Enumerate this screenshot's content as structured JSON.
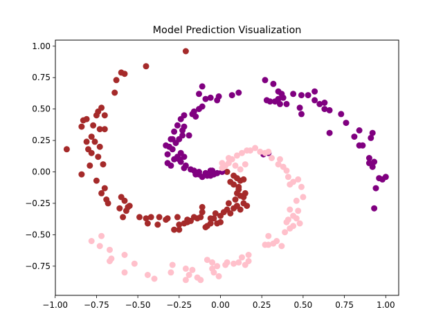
{
  "chart_data": {
    "type": "scatter",
    "title": "Model Prediction Visualization",
    "xlabel": "",
    "ylabel": "",
    "xlim": [
      -1.0,
      1.0
    ],
    "ylim": [
      -0.95,
      1.0
    ],
    "xticks": [
      -1.0,
      -0.75,
      -0.5,
      -0.25,
      0.0,
      0.25,
      0.5,
      0.75,
      1.0
    ],
    "xtick_labels": [
      "−1.00",
      "−0.75",
      "−0.50",
      "−0.25",
      "0.00",
      "0.25",
      "0.50",
      "0.75",
      "1.00"
    ],
    "yticks": [
      -0.75,
      -0.5,
      -0.25,
      0.0,
      0.25,
      0.5,
      0.75,
      1.0
    ],
    "ytick_labels": [
      "−0.75",
      "−0.50",
      "−0.25",
      "0.00",
      "0.25",
      "0.50",
      "0.75",
      "1.00"
    ],
    "grid": false,
    "series": [
      {
        "color": "#a52a2a",
        "points": [
          [
            -0.21,
            0.96
          ],
          [
            -0.45,
            0.84
          ],
          [
            -0.6,
            0.79
          ],
          [
            -0.58,
            0.78
          ],
          [
            -0.63,
            0.73
          ],
          [
            -0.64,
            0.63
          ],
          [
            -0.72,
            0.51
          ],
          [
            -0.74,
            0.48
          ],
          [
            -0.75,
            0.45
          ],
          [
            -0.7,
            0.45
          ],
          [
            -0.81,
            0.42
          ],
          [
            -0.83,
            0.41
          ],
          [
            -0.77,
            0.37
          ],
          [
            -0.73,
            0.34
          ],
          [
            -0.7,
            0.34
          ],
          [
            -0.84,
            0.36
          ],
          [
            -0.78,
            0.28
          ],
          [
            -0.81,
            0.24
          ],
          [
            -0.76,
            0.24
          ],
          [
            -0.73,
            0.2
          ],
          [
            -0.93,
            0.18
          ],
          [
            -0.8,
            0.18
          ],
          [
            -0.78,
            0.15
          ],
          [
            -0.74,
            0.12
          ],
          [
            -0.79,
            0.05
          ],
          [
            -0.71,
            0.06
          ],
          [
            -0.84,
            -0.02
          ],
          [
            -0.75,
            -0.07
          ],
          [
            -0.7,
            -0.13
          ],
          [
            -0.72,
            -0.17
          ],
          [
            -0.69,
            -0.22
          ],
          [
            -0.68,
            -0.25
          ],
          [
            -0.6,
            -0.2
          ],
          [
            -0.58,
            -0.23
          ],
          [
            -0.61,
            -0.29
          ],
          [
            -0.57,
            -0.31
          ],
          [
            -0.55,
            -0.27
          ],
          [
            -0.59,
            -0.36
          ],
          [
            -0.56,
            -0.28
          ],
          [
            -0.49,
            -0.36
          ],
          [
            -0.45,
            -0.37
          ],
          [
            -0.42,
            -0.36
          ],
          [
            -0.44,
            -0.41
          ],
          [
            -0.37,
            -0.36
          ],
          [
            -0.38,
            -0.42
          ],
          [
            -0.33,
            -0.38
          ],
          [
            -0.32,
            -0.37
          ],
          [
            -0.26,
            -0.36
          ],
          [
            -0.28,
            -0.46
          ],
          [
            -0.25,
            -0.42
          ],
          [
            -0.25,
            -0.46
          ],
          [
            -0.22,
            -0.41
          ],
          [
            -0.2,
            -0.4
          ],
          [
            -0.2,
            -0.38
          ],
          [
            -0.18,
            -0.39
          ],
          [
            -0.16,
            -0.36
          ],
          [
            -0.14,
            -0.37
          ],
          [
            -0.12,
            -0.36
          ],
          [
            -0.11,
            -0.32
          ],
          [
            -0.11,
            -0.28
          ],
          [
            -0.09,
            -0.44
          ],
          [
            -0.08,
            -0.43
          ],
          [
            -0.06,
            -0.41
          ],
          [
            -0.06,
            -0.37
          ],
          [
            -0.04,
            -0.37
          ],
          [
            -0.03,
            -0.33
          ],
          [
            -0.02,
            -0.41
          ],
          [
            0.0,
            -0.35
          ],
          [
            0.0,
            -0.4
          ],
          [
            0.02,
            -0.32
          ],
          [
            0.04,
            -0.3
          ],
          [
            0.05,
            -0.25
          ],
          [
            0.06,
            -0.33
          ],
          [
            0.08,
            -0.29
          ],
          [
            0.09,
            -0.22
          ],
          [
            0.1,
            -0.17
          ],
          [
            0.11,
            -0.14
          ],
          [
            0.11,
            -0.12
          ],
          [
            0.12,
            -0.19
          ],
          [
            0.14,
            -0.2
          ],
          [
            0.14,
            -0.25
          ],
          [
            0.15,
            -0.17
          ],
          [
            0.16,
            -0.27
          ],
          [
            0.1,
            -0.27
          ],
          [
            0.12,
            -0.3
          ],
          [
            0.08,
            -0.1
          ],
          [
            0.06,
            -0.08
          ],
          [
            0.1,
            -0.05
          ],
          [
            0.08,
            -0.03
          ],
          [
            0.04,
            0.0
          ],
          [
            0.12,
            -0.07
          ],
          [
            0.14,
            -0.06
          ]
        ]
      },
      {
        "color": "#800080",
        "points": [
          [
            0.27,
            0.73
          ],
          [
            0.32,
            0.7
          ],
          [
            0.35,
            0.64
          ],
          [
            0.37,
            0.62
          ],
          [
            0.38,
            0.59
          ],
          [
            0.35,
            0.58
          ],
          [
            0.28,
            0.57
          ],
          [
            0.3,
            0.56
          ],
          [
            0.33,
            0.56
          ],
          [
            0.36,
            0.54
          ],
          [
            0.4,
            0.54
          ],
          [
            0.44,
            0.62
          ],
          [
            0.49,
            0.61
          ],
          [
            0.53,
            0.61
          ],
          [
            0.57,
            0.64
          ],
          [
            0.57,
            0.57
          ],
          [
            0.6,
            0.54
          ],
          [
            0.63,
            0.55
          ],
          [
            0.63,
            0.5
          ],
          [
            0.66,
            0.49
          ],
          [
            0.48,
            0.51
          ],
          [
            0.49,
            0.46
          ],
          [
            0.73,
            0.46
          ],
          [
            0.76,
            0.39
          ],
          [
            0.66,
            0.31
          ],
          [
            0.84,
            0.33
          ],
          [
            0.92,
            0.31
          ],
          [
            0.81,
            0.28
          ],
          [
            0.84,
            0.21
          ],
          [
            0.86,
            0.21
          ],
          [
            0.91,
            0.27
          ],
          [
            0.9,
            0.11
          ],
          [
            0.93,
            0.08
          ],
          [
            0.9,
            0.07
          ],
          [
            0.92,
            0.04
          ],
          [
            0.96,
            -0.05
          ],
          [
            0.98,
            -0.06
          ],
          [
            1.0,
            -0.04
          ],
          [
            0.94,
            -0.13
          ],
          [
            0.93,
            -0.29
          ],
          [
            0.26,
            0.14
          ],
          [
            0.29,
            0.15
          ],
          [
            -0.11,
            0.68
          ],
          [
            -0.13,
            0.62
          ],
          [
            0.07,
            0.61
          ],
          [
            0.11,
            0.63
          ],
          [
            -0.01,
            0.6
          ],
          [
            -0.02,
            0.57
          ],
          [
            -0.06,
            0.59
          ],
          [
            -0.09,
            0.58
          ],
          [
            -0.11,
            0.52
          ],
          [
            -0.13,
            0.5
          ],
          [
            -0.16,
            0.48
          ],
          [
            -0.17,
            0.46
          ],
          [
            -0.15,
            0.44
          ],
          [
            -0.22,
            0.45
          ],
          [
            -0.24,
            0.42
          ],
          [
            -0.26,
            0.37
          ],
          [
            -0.22,
            0.36
          ],
          [
            -0.28,
            0.32
          ],
          [
            -0.23,
            0.33
          ],
          [
            -0.19,
            0.29
          ],
          [
            -0.23,
            0.29
          ],
          [
            -0.29,
            0.26
          ],
          [
            -0.25,
            0.26
          ],
          [
            -0.3,
            0.26
          ],
          [
            -0.27,
            0.23
          ],
          [
            -0.33,
            0.21
          ],
          [
            -0.31,
            0.2
          ],
          [
            -0.29,
            0.18
          ],
          [
            -0.32,
            0.14
          ],
          [
            -0.24,
            0.15
          ],
          [
            -0.26,
            0.12
          ],
          [
            -0.22,
            0.12
          ],
          [
            -0.25,
            0.1
          ],
          [
            -0.28,
            0.1
          ],
          [
            -0.3,
            0.05
          ],
          [
            -0.32,
            0.07
          ],
          [
            -0.24,
            0.08
          ],
          [
            -0.21,
            0.05
          ],
          [
            -0.22,
            0.03
          ],
          [
            -0.18,
            0.02
          ],
          [
            -0.16,
            0.01
          ],
          [
            -0.15,
            -0.02
          ],
          [
            -0.13,
            -0.02
          ],
          [
            -0.11,
            -0.04
          ],
          [
            -0.09,
            -0.01
          ],
          [
            -0.06,
            -0.03
          ],
          [
            -0.04,
            -0.02
          ],
          [
            -0.02,
            -0.01
          ],
          [
            0.01,
            0.0
          ],
          [
            -0.08,
            -0.03
          ],
          [
            -0.13,
            0.0
          ],
          [
            -0.06,
            0.01
          ],
          [
            -0.05,
            0.01
          ]
        ]
      },
      {
        "color": "#ffc0cb",
        "points": [
          [
            -0.78,
            -0.55
          ],
          [
            -0.72,
            -0.51
          ],
          [
            -0.73,
            -0.59
          ],
          [
            -0.67,
            -0.62
          ],
          [
            -0.66,
            -0.69
          ],
          [
            -0.67,
            -0.71
          ],
          [
            -0.58,
            -0.66
          ],
          [
            -0.58,
            -0.8
          ],
          [
            -0.52,
            -0.73
          ],
          [
            -0.44,
            -0.82
          ],
          [
            -0.4,
            -0.85
          ],
          [
            -0.3,
            -0.8
          ],
          [
            -0.29,
            -0.74
          ],
          [
            -0.21,
            -0.77
          ],
          [
            -0.19,
            -0.82
          ],
          [
            -0.21,
            -0.86
          ],
          [
            -0.17,
            -0.78
          ],
          [
            -0.14,
            -0.84
          ],
          [
            -0.12,
            -0.86
          ],
          [
            -0.08,
            -0.7
          ],
          [
            -0.05,
            -0.72
          ],
          [
            -0.05,
            -0.77
          ],
          [
            -0.04,
            -0.8
          ],
          [
            -0.02,
            -0.75
          ],
          [
            -0.01,
            -0.83
          ],
          [
            0.03,
            -0.74
          ],
          [
            0.04,
            -0.72
          ],
          [
            0.08,
            -0.73
          ],
          [
            0.11,
            -0.72
          ],
          [
            0.13,
            -0.68
          ],
          [
            0.15,
            -0.74
          ],
          [
            0.17,
            -0.71
          ],
          [
            0.17,
            -0.66
          ],
          [
            0.27,
            -0.58
          ],
          [
            0.29,
            -0.58
          ],
          [
            0.34,
            -0.55
          ],
          [
            0.29,
            -0.51
          ],
          [
            0.32,
            -0.57
          ],
          [
            0.37,
            -0.59
          ],
          [
            0.39,
            -0.48
          ],
          [
            0.4,
            -0.4
          ],
          [
            0.42,
            -0.45
          ],
          [
            0.41,
            -0.38
          ],
          [
            0.42,
            -0.3
          ],
          [
            0.44,
            -0.35
          ],
          [
            0.46,
            -0.37
          ],
          [
            0.44,
            -0.43
          ],
          [
            0.48,
            -0.41
          ],
          [
            0.47,
            -0.31
          ],
          [
            0.46,
            -0.23
          ],
          [
            0.5,
            -0.2
          ],
          [
            0.49,
            -0.12
          ],
          [
            0.47,
            -0.06
          ],
          [
            0.44,
            -0.08
          ],
          [
            0.42,
            -0.1
          ],
          [
            0.41,
            -0.04
          ],
          [
            0.4,
            0.01
          ],
          [
            0.38,
            0.04
          ],
          [
            0.35,
            0.06
          ],
          [
            0.36,
            0.1
          ],
          [
            0.31,
            0.11
          ],
          [
            0.29,
            0.16
          ],
          [
            0.27,
            0.15
          ],
          [
            0.24,
            0.16
          ],
          [
            0.21,
            0.19
          ],
          [
            0.18,
            0.17
          ],
          [
            0.16,
            0.17
          ],
          [
            0.13,
            0.15
          ],
          [
            0.1,
            0.13
          ],
          [
            0.07,
            0.1
          ],
          [
            0.05,
            0.07
          ],
          [
            0.03,
            0.05
          ],
          [
            0.01,
            0.03
          ],
          [
            0.01,
            0.07
          ],
          [
            0.05,
            0.11
          ],
          [
            0.09,
            0.05
          ],
          [
            0.12,
            0.02
          ],
          [
            0.15,
            0.06
          ]
        ]
      }
    ]
  }
}
